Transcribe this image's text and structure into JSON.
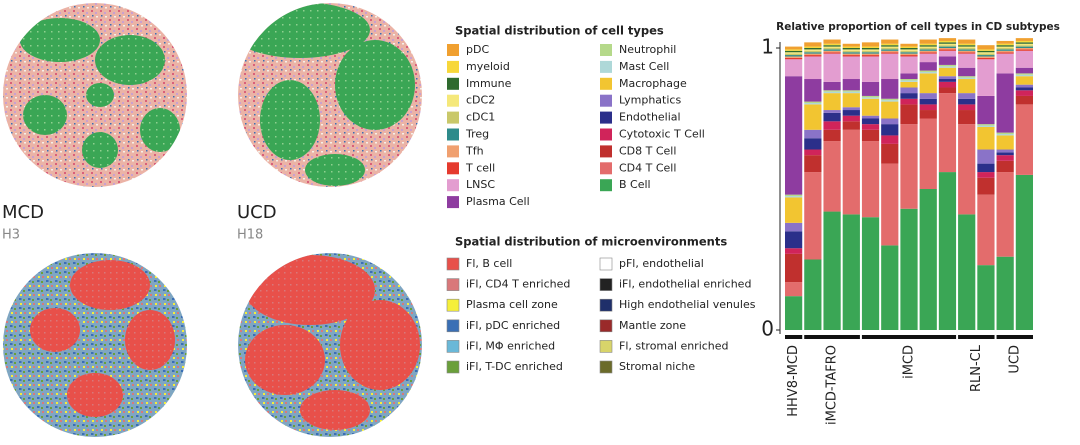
{
  "samples": [
    {
      "name": "MCD",
      "id": "H3"
    },
    {
      "name": "UCD",
      "id": "H18"
    }
  ],
  "microenvironments": {
    "title": "Spatial distribution of microenvironments",
    "items": [
      {
        "label": "Fl, B cell",
        "color": "#e8504a"
      },
      {
        "label": "iFl, CD4 T enriched",
        "color": "#d9787a"
      },
      {
        "label": "Plasma cell zone",
        "color": "#f5ef3a"
      },
      {
        "label": "iFl, pDC enriched",
        "color": "#3a6fb5"
      },
      {
        "label": "iFl, MΦ enriched",
        "color": "#6ab8d8"
      },
      {
        "label": "iFl, T-DC enriched",
        "color": "#6a9f3a"
      },
      {
        "label": "pFl, endothelial",
        "color": "#ffffff"
      },
      {
        "label": "iFl, endothelial enriched",
        "color": "#222222"
      },
      {
        "label": "High endothelial venules",
        "color": "#1f2f6a"
      },
      {
        "label": "Mantle zone",
        "color": "#9a2a2a"
      },
      {
        "label": "Fl, stromal enriched",
        "color": "#d8d46a"
      },
      {
        "label": "Stromal niche",
        "color": "#6b6b2a"
      }
    ]
  },
  "chart_data": {
    "type": "stacked_bar",
    "title": "Relative proportion of cell types in CD subtypes",
    "legend_title": "Spatial distribution of cell types",
    "categories": [
      "HHV8-MCD",
      "iMCD-TAFRO",
      "iMCD-TAFRO",
      "iMCD-TAFRO",
      "iMCD",
      "iMCD",
      "iMCD",
      "iMCD",
      "iMCD",
      "RLN-CL",
      "RLN-CL",
      "UCD",
      "UCD"
    ],
    "ylim": [
      0,
      1
    ],
    "yticks": [
      0,
      1
    ],
    "series": [
      {
        "name": "B Cell",
        "color": "#3aa655",
        "values": [
          0.12,
          0.25,
          0.42,
          0.41,
          0.4,
          0.3,
          0.43,
          0.5,
          0.56,
          0.41,
          0.23,
          0.26,
          0.55
        ]
      },
      {
        "name": "CD4 T Cell",
        "color": "#e36c6c",
        "values": [
          0.05,
          0.31,
          0.25,
          0.3,
          0.27,
          0.29,
          0.3,
          0.25,
          0.28,
          0.32,
          0.25,
          0.3,
          0.25
        ]
      },
      {
        "name": "CD8 T Cell",
        "color": "#c0302e",
        "values": [
          0.1,
          0.06,
          0.04,
          0.03,
          0.04,
          0.07,
          0.07,
          0.03,
          0.02,
          0.05,
          0.06,
          0.04,
          0.03
        ]
      },
      {
        "name": "Cytotoxic T Cell",
        "color": "#d0245a",
        "values": [
          0.02,
          0.02,
          0.03,
          0.02,
          0.02,
          0.03,
          0.02,
          0.02,
          0.02,
          0.02,
          0.02,
          0.02,
          0.02
        ]
      },
      {
        "name": "Endothelial",
        "color": "#2b2f8a",
        "values": [
          0.06,
          0.04,
          0.03,
          0.02,
          0.02,
          0.04,
          0.02,
          0.02,
          0.01,
          0.02,
          0.03,
          0.01,
          0.01
        ]
      },
      {
        "name": "Lymphatics",
        "color": "#8a73c8",
        "values": [
          0.03,
          0.03,
          0.01,
          0.01,
          0.01,
          0.02,
          0.02,
          0.02,
          0.01,
          0.02,
          0.05,
          0.01,
          0.01
        ]
      },
      {
        "name": "Macrophage",
        "color": "#f2c531",
        "values": [
          0.09,
          0.09,
          0.06,
          0.05,
          0.06,
          0.06,
          0.02,
          0.07,
          0.03,
          0.05,
          0.08,
          0.05,
          0.03
        ]
      },
      {
        "name": "Mast Cell",
        "color": "#aed8d8",
        "values": [
          0.005,
          0.005,
          0.005,
          0.005,
          0.005,
          0.005,
          0.005,
          0.005,
          0.005,
          0.005,
          0.005,
          0.005,
          0.005
        ]
      },
      {
        "name": "Neutrophil",
        "color": "#b5d98a",
        "values": [
          0.005,
          0.005,
          0.005,
          0.005,
          0.005,
          0.005,
          0.005,
          0.005,
          0.005,
          0.005,
          0.005,
          0.005,
          0.005
        ]
      },
      {
        "name": "Plasma Cell",
        "color": "#8e3ca0",
        "values": [
          0.42,
          0.08,
          0.03,
          0.04,
          0.05,
          0.07,
          0.02,
          0.03,
          0.03,
          0.03,
          0.1,
          0.21,
          0.02
        ]
      },
      {
        "name": "LNSC",
        "color": "#e39dd0",
        "values": [
          0.06,
          0.08,
          0.1,
          0.08,
          0.09,
          0.09,
          0.06,
          0.03,
          0.02,
          0.05,
          0.13,
          0.07,
          0.06
        ]
      },
      {
        "name": "T cell",
        "color": "#e53a2e",
        "values": [
          0.005,
          0.005,
          0.005,
          0.005,
          0.005,
          0.005,
          0.005,
          0.005,
          0.005,
          0.005,
          0.005,
          0.005,
          0.005
        ]
      },
      {
        "name": "Tfh",
        "color": "#f0a070",
        "values": [
          0.005,
          0.005,
          0.005,
          0.005,
          0.005,
          0.005,
          0.005,
          0.005,
          0.005,
          0.005,
          0.005,
          0.005,
          0.005
        ]
      },
      {
        "name": "Treg",
        "color": "#2e8b8b",
        "values": [
          0.005,
          0.005,
          0.005,
          0.005,
          0.005,
          0.005,
          0.005,
          0.005,
          0.005,
          0.005,
          0.005,
          0.005,
          0.005
        ]
      },
      {
        "name": "cDC1",
        "color": "#c9c86a",
        "values": [
          0.005,
          0.005,
          0.005,
          0.005,
          0.005,
          0.005,
          0.005,
          0.005,
          0.005,
          0.005,
          0.005,
          0.005,
          0.005
        ]
      },
      {
        "name": "cDC2",
        "color": "#f5e87a",
        "values": [
          0.005,
          0.005,
          0.005,
          0.005,
          0.005,
          0.005,
          0.005,
          0.005,
          0.005,
          0.005,
          0.005,
          0.005,
          0.005
        ]
      },
      {
        "name": "Immune",
        "color": "#2f6b2f",
        "values": [
          0.005,
          0.005,
          0.005,
          0.005,
          0.005,
          0.005,
          0.005,
          0.005,
          0.005,
          0.005,
          0.005,
          0.005,
          0.005
        ]
      },
      {
        "name": "myeloid",
        "color": "#f7d73a",
        "values": [
          0.005,
          0.005,
          0.005,
          0.005,
          0.005,
          0.005,
          0.005,
          0.005,
          0.005,
          0.005,
          0.005,
          0.005,
          0.005
        ]
      },
      {
        "name": "pDC",
        "color": "#f0a030",
        "values": [
          0.01,
          0.015,
          0.015,
          0.01,
          0.015,
          0.015,
          0.01,
          0.015,
          0.01,
          0.015,
          0.015,
          0.01,
          0.01
        ]
      }
    ]
  }
}
